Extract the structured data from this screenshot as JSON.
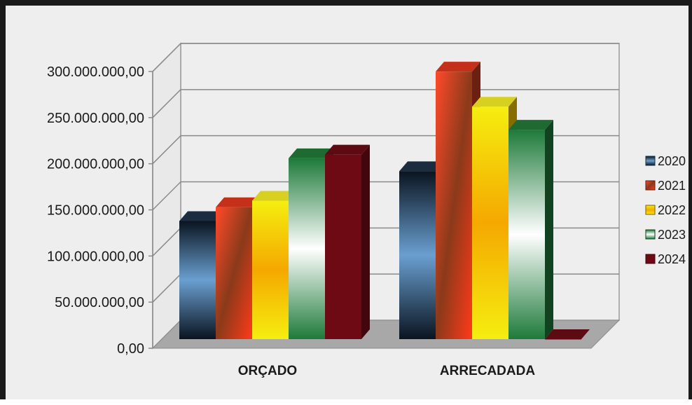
{
  "chart_data": {
    "type": "bar",
    "categories": [
      "ORÇADO",
      "ARRECADADA"
    ],
    "series": [
      {
        "name": "2020",
        "values": [
          128000000,
          182000000
        ],
        "color": "#2f5f8f"
      },
      {
        "name": "2021",
        "values": [
          143000000,
          290000000
        ],
        "color": "#c43a1e"
      },
      {
        "name": "2022",
        "values": [
          150000000,
          252000000
        ],
        "color": "#f5c400"
      },
      {
        "name": "2023",
        "values": [
          196000000,
          227000000
        ],
        "color": "#1e7a3a"
      },
      {
        "name": "2024",
        "values": [
          200000000,
          0
        ],
        "color": "#7a0a16"
      }
    ],
    "yticks": [
      "0,00",
      "50.000.000,00",
      "100.000.000,00",
      "150.000.000,00",
      "200.000.000,00",
      "250.000.000,00",
      "300.000.000,00"
    ],
    "ylim": [
      0,
      300000000
    ],
    "grid": true,
    "legend_position": "right",
    "style": "3d-column"
  }
}
